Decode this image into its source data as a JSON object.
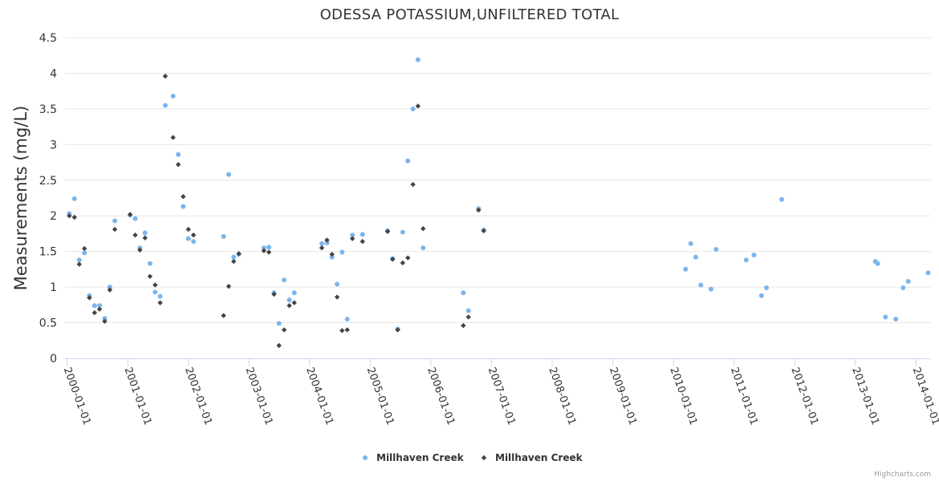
{
  "chart_data": {
    "type": "scatter",
    "title": "ODESSA POTASSIUM,UNFILTERED TOTAL",
    "ylabel": "Measurements (mg/L)",
    "xlabel": "",
    "ylim": [
      0,
      4.5
    ],
    "yticks": [
      "0",
      "0.5",
      "1",
      "1.5",
      "2",
      "2.5",
      "3",
      "3.5",
      "4",
      "4.5"
    ],
    "xlim": [
      "1999-12-20",
      "2014-04-01"
    ],
    "xticks": [
      "2000-01-01",
      "2001-01-01",
      "2002-01-01",
      "2003-01-01",
      "2004-01-01",
      "2005-01-01",
      "2006-01-01",
      "2007-01-01",
      "2008-01-01",
      "2009-01-01",
      "2010-01-01",
      "2011-01-01",
      "2012-01-01",
      "2013-01-01",
      "2014-01-01"
    ],
    "grid": true,
    "legend_position": "bottom-center",
    "credits": "Highcharts.com",
    "series": [
      {
        "name": "Millhaven Creek",
        "marker": "circle",
        "color": "#7cb5ec",
        "points": [
          [
            "2000-01-15",
            2.03
          ],
          [
            "2000-02-15",
            2.24
          ],
          [
            "2000-03-15",
            1.38
          ],
          [
            "2000-04-15",
            1.48
          ],
          [
            "2000-05-15",
            0.88
          ],
          [
            "2000-06-15",
            0.74
          ],
          [
            "2000-07-15",
            0.74
          ],
          [
            "2000-08-15",
            0.56
          ],
          [
            "2000-09-15",
            1.0
          ],
          [
            "2000-10-15",
            1.93
          ],
          [
            "2001-01-15",
            2.01
          ],
          [
            "2001-02-15",
            1.96
          ],
          [
            "2001-03-15",
            1.55
          ],
          [
            "2001-04-15",
            1.76
          ],
          [
            "2001-05-15",
            1.33
          ],
          [
            "2001-06-15",
            0.93
          ],
          [
            "2001-07-15",
            0.87
          ],
          [
            "2001-08-15",
            3.55
          ],
          [
            "2001-10-01",
            3.68
          ],
          [
            "2001-11-01",
            2.86
          ],
          [
            "2001-12-01",
            2.13
          ],
          [
            "2002-01-01",
            1.68
          ],
          [
            "2002-02-01",
            1.64
          ],
          [
            "2002-08-01",
            1.71
          ],
          [
            "2002-09-01",
            2.58
          ],
          [
            "2002-10-01",
            1.42
          ],
          [
            "2002-11-01",
            1.46
          ],
          [
            "2003-04-01",
            1.55
          ],
          [
            "2003-05-01",
            1.56
          ],
          [
            "2003-06-01",
            0.92
          ],
          [
            "2003-07-01",
            0.49
          ],
          [
            "2003-08-01",
            1.1
          ],
          [
            "2003-09-01",
            0.82
          ],
          [
            "2003-10-01",
            0.92
          ],
          [
            "2004-03-15",
            1.61
          ],
          [
            "2004-04-15",
            1.62
          ],
          [
            "2004-05-15",
            1.42
          ],
          [
            "2004-06-15",
            1.04
          ],
          [
            "2004-07-15",
            1.49
          ],
          [
            "2004-08-15",
            0.55
          ],
          [
            "2004-09-15",
            1.73
          ],
          [
            "2004-11-15",
            1.74
          ],
          [
            "2005-04-15",
            1.79
          ],
          [
            "2005-05-15",
            1.4
          ],
          [
            "2005-06-15",
            0.41
          ],
          [
            "2005-07-15",
            1.77
          ],
          [
            "2005-08-15",
            2.77
          ],
          [
            "2005-09-15",
            3.5
          ],
          [
            "2005-10-15",
            4.19
          ],
          [
            "2005-11-15",
            1.55
          ],
          [
            "2006-07-15",
            0.92
          ],
          [
            "2006-08-15",
            0.67
          ],
          [
            "2006-10-15",
            2.1
          ],
          [
            "2006-11-15",
            1.8
          ],
          [
            "2010-03-15",
            1.25
          ],
          [
            "2010-04-15",
            1.61
          ],
          [
            "2010-05-15",
            1.42
          ],
          [
            "2010-06-15",
            1.03
          ],
          [
            "2010-08-15",
            0.97
          ],
          [
            "2010-09-15",
            1.53
          ],
          [
            "2011-03-15",
            1.38
          ],
          [
            "2011-05-01",
            1.45
          ],
          [
            "2011-06-15",
            0.88
          ],
          [
            "2011-07-15",
            0.99
          ],
          [
            "2011-10-15",
            2.23
          ],
          [
            "2013-05-01",
            1.36
          ],
          [
            "2013-05-15",
            1.33
          ],
          [
            "2013-07-01",
            0.58
          ],
          [
            "2013-09-01",
            0.55
          ],
          [
            "2013-10-15",
            0.99
          ],
          [
            "2013-11-15",
            1.08
          ],
          [
            "2014-03-15",
            1.2
          ]
        ]
      },
      {
        "name": "Millhaven Creek",
        "marker": "diamond",
        "color": "#434348",
        "points": [
          [
            "2000-01-15",
            2.0
          ],
          [
            "2000-02-15",
            1.98
          ],
          [
            "2000-03-15",
            1.32
          ],
          [
            "2000-04-15",
            1.54
          ],
          [
            "2000-05-15",
            0.85
          ],
          [
            "2000-06-15",
            0.64
          ],
          [
            "2000-07-15",
            0.69
          ],
          [
            "2000-08-15",
            0.52
          ],
          [
            "2000-09-15",
            0.96
          ],
          [
            "2000-10-15",
            1.81
          ],
          [
            "2001-01-15",
            2.02
          ],
          [
            "2001-02-15",
            1.73
          ],
          [
            "2001-03-15",
            1.52
          ],
          [
            "2001-04-15",
            1.69
          ],
          [
            "2001-05-15",
            1.15
          ],
          [
            "2001-06-15",
            1.03
          ],
          [
            "2001-07-15",
            0.78
          ],
          [
            "2001-08-15",
            3.96
          ],
          [
            "2001-10-01",
            3.1
          ],
          [
            "2001-11-01",
            2.72
          ],
          [
            "2001-12-01",
            2.27
          ],
          [
            "2002-01-01",
            1.81
          ],
          [
            "2002-02-01",
            1.73
          ],
          [
            "2002-08-01",
            0.6
          ],
          [
            "2002-09-01",
            1.01
          ],
          [
            "2002-10-01",
            1.36
          ],
          [
            "2002-11-01",
            1.47
          ],
          [
            "2003-04-01",
            1.51
          ],
          [
            "2003-05-01",
            1.49
          ],
          [
            "2003-06-01",
            0.9
          ],
          [
            "2003-07-01",
            0.18
          ],
          [
            "2003-08-01",
            0.4
          ],
          [
            "2003-09-01",
            0.74
          ],
          [
            "2003-10-01",
            0.78
          ],
          [
            "2004-03-15",
            1.55
          ],
          [
            "2004-04-15",
            1.66
          ],
          [
            "2004-05-15",
            1.46
          ],
          [
            "2004-06-15",
            0.86
          ],
          [
            "2004-07-15",
            0.39
          ],
          [
            "2004-08-15",
            0.4
          ],
          [
            "2004-09-15",
            1.68
          ],
          [
            "2004-11-15",
            1.64
          ],
          [
            "2005-04-15",
            1.78
          ],
          [
            "2005-05-15",
            1.39
          ],
          [
            "2005-06-15",
            0.4
          ],
          [
            "2005-07-15",
            1.34
          ],
          [
            "2005-08-15",
            1.41
          ],
          [
            "2005-09-15",
            2.44
          ],
          [
            "2005-10-15",
            3.54
          ],
          [
            "2005-11-15",
            1.82
          ],
          [
            "2006-07-15",
            0.46
          ],
          [
            "2006-08-15",
            0.58
          ],
          [
            "2006-10-15",
            2.08
          ],
          [
            "2006-11-15",
            1.79
          ]
        ]
      }
    ]
  }
}
